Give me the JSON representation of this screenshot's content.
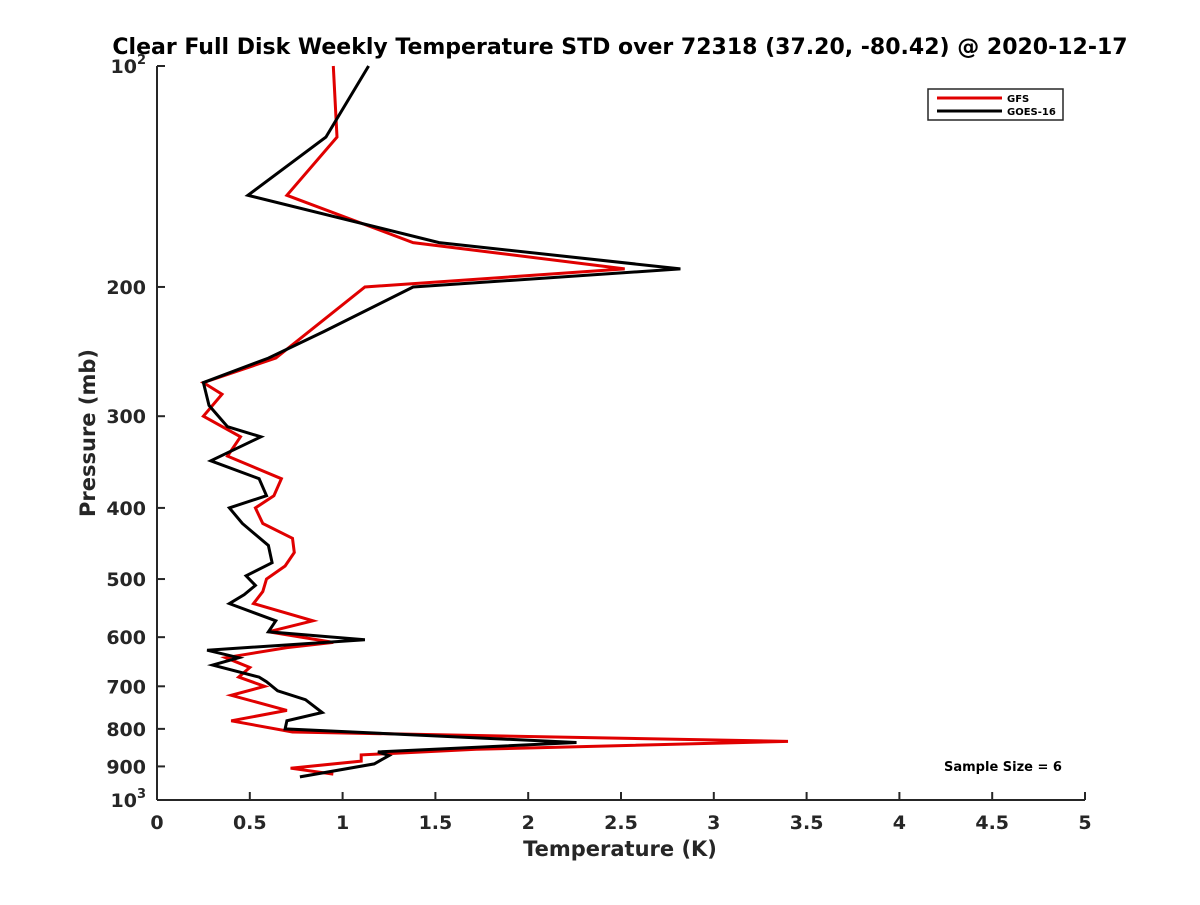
{
  "chart_data": {
    "type": "line",
    "title": "Clear Full Disk Weekly Temperature STD over 72318 (37.20, -80.42) @ 2020-12-17",
    "xlabel": "Temperature (K)",
    "ylabel": "Pressure (mb)",
    "xlim": [
      0,
      5
    ],
    "ylim": [
      100,
      1000
    ],
    "y_scale": "log",
    "y_reversed": true,
    "x_ticks": [
      0,
      0.5,
      1,
      1.5,
      2,
      2.5,
      3,
      3.5,
      4,
      4.5,
      5
    ],
    "x_tick_labels": [
      "0",
      "0.5",
      "1",
      "1.5",
      "2",
      "2.5",
      "3",
      "3.5",
      "4",
      "4.5",
      "5"
    ],
    "y_ticks": [
      100,
      200,
      300,
      400,
      500,
      600,
      700,
      800,
      900,
      1000
    ],
    "y_tick_labels": [
      {
        "base": "10",
        "exp": "2"
      },
      {
        "base": "200",
        "exp": ""
      },
      {
        "base": "300",
        "exp": ""
      },
      {
        "base": "400",
        "exp": ""
      },
      {
        "base": "500",
        "exp": ""
      },
      {
        "base": "600",
        "exp": ""
      },
      {
        "base": "700",
        "exp": ""
      },
      {
        "base": "800",
        "exp": ""
      },
      {
        "base": "900",
        "exp": ""
      },
      {
        "base": "10",
        "exp": "3"
      }
    ],
    "legend_position": "top-right",
    "annotation": "Sample Size = 6",
    "series": [
      {
        "name": "GFS",
        "color": "#e00000",
        "points": [
          [
            0.95,
            100
          ],
          [
            0.97,
            125
          ],
          [
            0.7,
            150
          ],
          [
            1.38,
            174
          ],
          [
            2.52,
            189
          ],
          [
            1.12,
            200
          ],
          [
            0.64,
            250
          ],
          [
            0.25,
            270
          ],
          [
            0.35,
            280
          ],
          [
            0.25,
            300
          ],
          [
            0.45,
            320
          ],
          [
            0.38,
            340
          ],
          [
            0.67,
            365
          ],
          [
            0.63,
            385
          ],
          [
            0.53,
            400
          ],
          [
            0.57,
            420
          ],
          [
            0.73,
            440
          ],
          [
            0.74,
            460
          ],
          [
            0.69,
            480
          ],
          [
            0.59,
            500
          ],
          [
            0.57,
            520
          ],
          [
            0.52,
            540
          ],
          [
            0.84,
            570
          ],
          [
            0.6,
            590
          ],
          [
            0.95,
            610
          ],
          [
            0.7,
            620
          ],
          [
            0.37,
            640
          ],
          [
            0.5,
            660
          ],
          [
            0.44,
            680
          ],
          [
            0.58,
            700
          ],
          [
            0.4,
            720
          ],
          [
            0.7,
            755
          ],
          [
            0.4,
            780
          ],
          [
            0.73,
            808
          ],
          [
            3.4,
            832
          ],
          [
            1.72,
            853
          ],
          [
            1.1,
            868
          ],
          [
            1.1,
            885
          ],
          [
            0.72,
            905
          ],
          [
            0.95,
            922
          ]
        ]
      },
      {
        "name": "GOES-16",
        "color": "#000000",
        "points": [
          [
            1.14,
            100
          ],
          [
            0.91,
            125
          ],
          [
            0.49,
            150
          ],
          [
            1.52,
            174
          ],
          [
            2.82,
            189
          ],
          [
            1.38,
            200
          ],
          [
            0.9,
            230
          ],
          [
            0.6,
            250
          ],
          [
            0.25,
            270
          ],
          [
            0.28,
            290
          ],
          [
            0.38,
            310
          ],
          [
            0.56,
            320
          ],
          [
            0.29,
            345
          ],
          [
            0.55,
            365
          ],
          [
            0.59,
            385
          ],
          [
            0.39,
            400
          ],
          [
            0.46,
            420
          ],
          [
            0.6,
            450
          ],
          [
            0.62,
            475
          ],
          [
            0.48,
            495
          ],
          [
            0.53,
            510
          ],
          [
            0.47,
            525
          ],
          [
            0.39,
            540
          ],
          [
            0.64,
            570
          ],
          [
            0.6,
            590
          ],
          [
            1.12,
            605
          ],
          [
            0.27,
            625
          ],
          [
            0.44,
            640
          ],
          [
            0.3,
            655
          ],
          [
            0.55,
            680
          ],
          [
            0.59,
            690
          ],
          [
            0.65,
            710
          ],
          [
            0.8,
            730
          ],
          [
            0.89,
            760
          ],
          [
            0.7,
            780
          ],
          [
            0.69,
            800
          ],
          [
            2.26,
            835
          ],
          [
            1.19,
            860
          ],
          [
            1.25,
            870
          ],
          [
            1.17,
            893
          ],
          [
            0.77,
            930
          ]
        ]
      }
    ]
  }
}
